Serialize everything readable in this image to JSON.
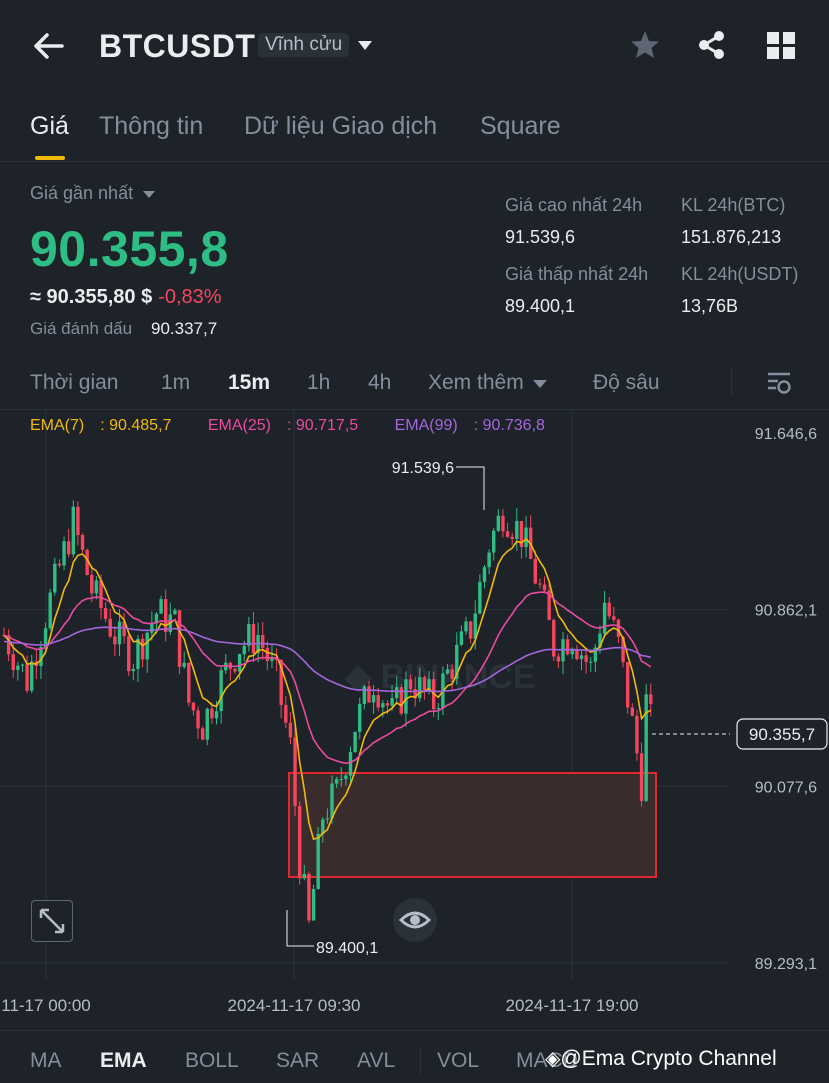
{
  "header": {
    "symbol": "BTCUSDT",
    "contract_tag": "Vĩnh cửu",
    "icons": [
      "back-arrow-icon",
      "chevron-down-icon",
      "star-icon",
      "share-icon",
      "grid-icon"
    ]
  },
  "tabs": [
    {
      "label": "Giá",
      "active": true
    },
    {
      "label": "Thông tin",
      "active": false
    },
    {
      "label": "Dữ liệu Giao dịch",
      "active": false
    },
    {
      "label": "Square",
      "active": false
    }
  ],
  "price": {
    "last_label": "Giá gần nhất",
    "last": "90.355,8",
    "usd": "≈ 90.355,80 $",
    "change": "-0,83%",
    "mark_label": "Giá đánh dấu",
    "mark": "90.337,7"
  },
  "stats": {
    "high_label": "Giá cao nhất 24h",
    "high": "91.539,6",
    "low_label": "Giá thấp nhất 24h",
    "low": "89.400,1",
    "vol_btc_label": "KL 24h(BTC)",
    "vol_btc": "151.876,213",
    "vol_usdt_label": "KL 24h(USDT)",
    "vol_usdt": "13,76B"
  },
  "intervals": {
    "items": [
      "Thời gian",
      "1m",
      "15m",
      "1h",
      "4h",
      "Xem thêm",
      "Độ sâu"
    ],
    "active": "15m"
  },
  "chart_data": {
    "type": "candlestick",
    "ema": [
      {
        "name": "EMA(7)",
        "value": "90.485,7",
        "color": "#f0b90b"
      },
      {
        "name": "EMA(25)",
        "value": "90.717,5",
        "color": "#e94ba0"
      },
      {
        "name": "EMA(99)",
        "value": "90.736,8",
        "color": "#a367dc"
      }
    ],
    "y_ticks": [
      "91.646,6",
      "90.862,1",
      "90.077,6",
      "89.293,1"
    ],
    "x_ticks": [
      "11-17 00:00",
      "2024-11-17 09:30",
      "2024-11-17 19:00"
    ],
    "high_marker": "91.539,6",
    "low_marker": "89.400,1",
    "current_price_tag": "90.355,7",
    "colors": {
      "up": "#2ebd85",
      "down": "#f6465d",
      "zone_border": "#e0282e"
    }
  },
  "indicators": {
    "items": [
      "MA",
      "EMA",
      "BOLL",
      "SAR",
      "AVL",
      "VOL",
      "MACD"
    ],
    "active": "EMA"
  },
  "watermark": "@Ema Crypto Channel"
}
